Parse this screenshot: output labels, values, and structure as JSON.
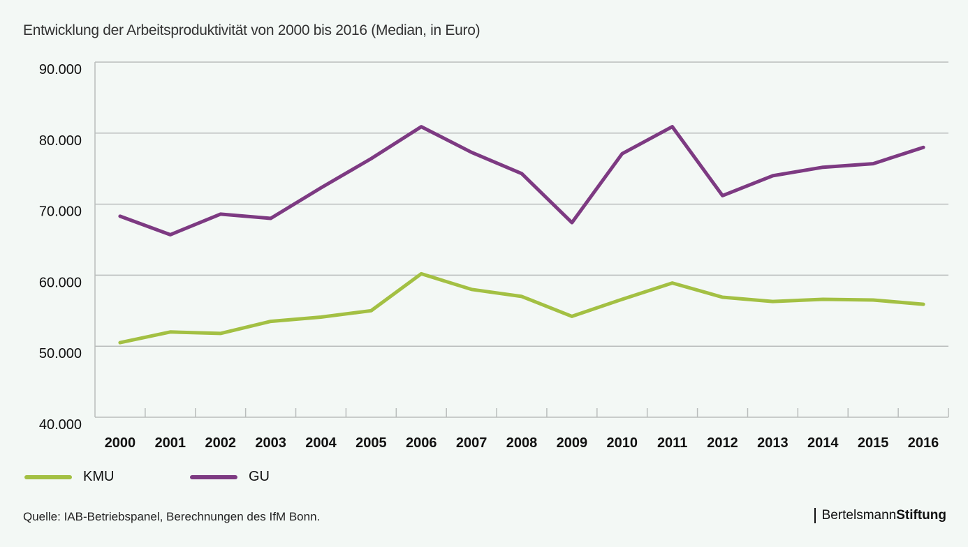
{
  "title": "Entwicklung der Arbeitsproduktivität von 2000 bis 2016 (Median, in Euro)",
  "chart_data": {
    "type": "line",
    "title": "Entwicklung der Arbeitsproduktivität von 2000 bis 2016 (Median, in Euro)",
    "xlabel": "",
    "ylabel": "",
    "x": [
      "2000",
      "2001",
      "2002",
      "2003",
      "2004",
      "2005",
      "2006",
      "2007",
      "2008",
      "2009",
      "2010",
      "2011",
      "2012",
      "2013",
      "2014",
      "2015",
      "2016"
    ],
    "ylim": [
      40000,
      90000
    ],
    "yticks": [
      40000,
      50000,
      60000,
      70000,
      80000,
      90000
    ],
    "ytick_labels": [
      "40.000",
      "50.000",
      "60.000",
      "70.000",
      "80.000",
      "90.000"
    ],
    "grid": true,
    "legend_position": "bottom-left",
    "series": [
      {
        "name": "KMU",
        "color": "#a3c043",
        "values": [
          50500,
          52000,
          51800,
          53500,
          54100,
          55000,
          60200,
          58000,
          57000,
          54200,
          56600,
          58900,
          56900,
          56300,
          56600,
          56500,
          55900
        ]
      },
      {
        "name": "GU",
        "color": "#7d3a82",
        "values": [
          68300,
          65700,
          68600,
          68000,
          72300,
          76400,
          80900,
          77300,
          74300,
          67400,
          77100,
          80900,
          71200,
          74000,
          75200,
          75700,
          78000
        ]
      }
    ]
  },
  "footer": {
    "source": "Quelle: IAB-Betriebspanel, Berechnungen des IfM Bonn.",
    "brand_regular": "Bertelsmann",
    "brand_bold": "Stiftung"
  }
}
